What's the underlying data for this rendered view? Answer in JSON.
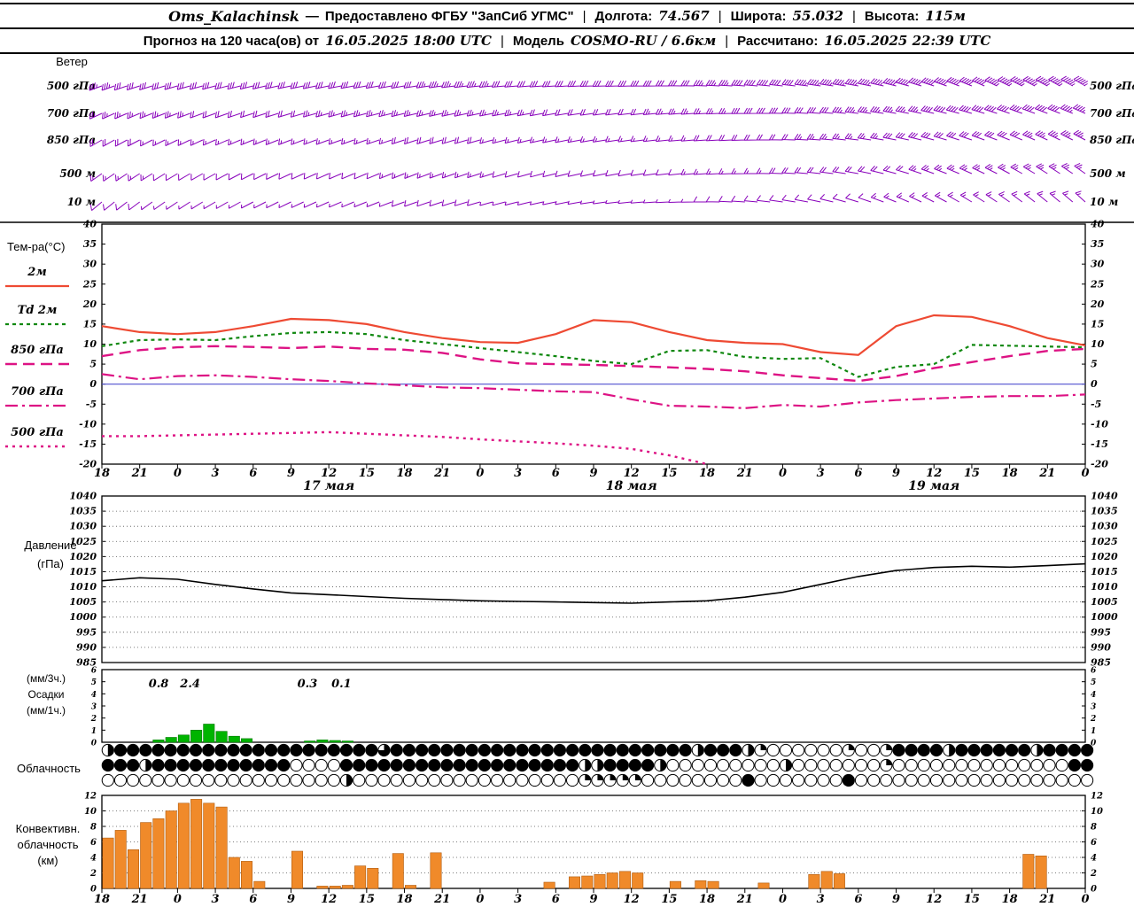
{
  "header": {
    "sep": "|",
    "line1": {
      "station": "Oms_Kalachinsk",
      "dash": "—",
      "provider": "Предоставлено ФГБУ \"ЗапСиб УГМС\"",
      "lon_label": "Долгота:",
      "lon_value": "74.567",
      "lat_label": "Широта:",
      "lat_value": "55.032",
      "alt_label": "Высота:",
      "alt_value": "115м"
    },
    "line2": {
      "forecast_label": "Прогноз на 120 часа(ов) от",
      "init_value": "16.05.2025 18:00 UTC",
      "model_label": "Модель",
      "model_value": "COSMO-RU / 6.6км",
      "calc_label": "Рассчитано:",
      "calc_value": "16.05.2025 22:39 UTC"
    }
  },
  "axis": {
    "span_hours": 78,
    "step_hours": 3,
    "hour_labels": [
      "18",
      "21",
      "0",
      "3",
      "6",
      "9",
      "12",
      "15",
      "18",
      "21",
      "0",
      "3",
      "6",
      "9",
      "12",
      "15",
      "18",
      "21",
      "0",
      "3",
      "6",
      "9",
      "12",
      "15",
      "18",
      "21",
      "0"
    ],
    "dates": [
      {
        "label": "17 мая",
        "hour": 18
      },
      {
        "label": "18 мая",
        "hour": 42
      },
      {
        "label": "19 мая",
        "hour": 66
      }
    ]
  },
  "chart_data": [
    {
      "id": "wind",
      "type": "wind-barbs",
      "title_lines": [
        "Ветер"
      ],
      "color": "#8800bb",
      "levels": [
        {
          "label": "500 гПа",
          "dirs": [
            250,
            252,
            254,
            255,
            256,
            258,
            258,
            260,
            260,
            262,
            264,
            265,
            266,
            268,
            268,
            270,
            272,
            274,
            276,
            278,
            280,
            284,
            288,
            292,
            296,
            298,
            300
          ],
          "speeds": [
            18,
            17,
            16,
            16,
            15,
            15,
            16,
            16,
            17,
            18,
            18,
            17,
            16,
            15,
            15,
            16,
            18,
            20,
            22,
            23,
            24,
            25,
            26,
            27,
            28,
            28,
            28
          ]
        },
        {
          "label": "700 гПа",
          "dirs": [
            245,
            247,
            249,
            250,
            252,
            253,
            254,
            255,
            256,
            257,
            258,
            259,
            260,
            262,
            263,
            265,
            267,
            269,
            271,
            274,
            277,
            280,
            283,
            286,
            289,
            291,
            293
          ],
          "speeds": [
            14,
            13,
            13,
            12,
            12,
            12,
            13,
            13,
            14,
            14,
            14,
            13,
            12,
            12,
            12,
            13,
            14,
            15,
            16,
            17,
            18,
            19,
            20,
            21,
            22,
            22,
            23
          ]
        },
        {
          "label": "850 гПа",
          "dirs": [
            240,
            242,
            244,
            246,
            248,
            249,
            250,
            251,
            252,
            253,
            254,
            256,
            258,
            260,
            262,
            264,
            266,
            268,
            271,
            274,
            277,
            281,
            285,
            289,
            292,
            295,
            298
          ],
          "speeds": [
            10,
            10,
            9,
            9,
            8,
            8,
            9,
            9,
            10,
            10,
            10,
            9,
            9,
            8,
            8,
            9,
            10,
            11,
            12,
            13,
            14,
            15,
            16,
            17,
            17,
            18,
            18
          ]
        },
        {
          "label": "500 м",
          "dirs": [
            235,
            237,
            239,
            241,
            243,
            245,
            246,
            247,
            248,
            250,
            252,
            254,
            256,
            258,
            260,
            263,
            266,
            269,
            272,
            276,
            280,
            285,
            290,
            294,
            298,
            302,
            305
          ],
          "speeds": [
            8,
            8,
            7,
            7,
            6,
            6,
            7,
            7,
            8,
            8,
            8,
            7,
            7,
            6,
            6,
            7,
            8,
            9,
            10,
            11,
            12,
            12,
            13,
            13,
            14,
            14,
            14
          ]
        },
        {
          "label": "10 м",
          "dirs": [
            230,
            233,
            236,
            239,
            242,
            244,
            246,
            248,
            250,
            252,
            254,
            256,
            258,
            261,
            264,
            267,
            270,
            274,
            278,
            282,
            287,
            292,
            297,
            301,
            305,
            309,
            312
          ],
          "speeds": [
            5,
            5,
            4,
            4,
            4,
            3,
            4,
            4,
            5,
            5,
            5,
            4,
            4,
            3,
            3,
            4,
            5,
            6,
            6,
            7,
            7,
            8,
            8,
            8,
            9,
            9,
            9
          ]
        }
      ]
    },
    {
      "id": "temperature",
      "type": "line",
      "title_lines": [
        "Тем-ра(°C)"
      ],
      "ylim": [
        -20,
        40
      ],
      "ytick": 5,
      "zero_line_color": "#5050d0",
      "series": [
        {
          "name": "2м",
          "color": "#ee4a33",
          "dash": "",
          "width": 2.2,
          "values": [
            14.5,
            13,
            12.5,
            13,
            14.5,
            16.3,
            16,
            15,
            13,
            11.5,
            10.5,
            10.3,
            12.5,
            16,
            15.5,
            13,
            11,
            10.3,
            10,
            8,
            7.3,
            14.5,
            17.2,
            16.8,
            14.5,
            11.5,
            9.7
          ]
        },
        {
          "name": "Td 2м",
          "color": "#108810",
          "dash": "4 4",
          "width": 2.2,
          "values": [
            9.5,
            11,
            11.2,
            11,
            12,
            12.8,
            13,
            12.5,
            11,
            10,
            9,
            8,
            7,
            5.8,
            5,
            8.3,
            8.5,
            6.8,
            6.3,
            6.5,
            1.8,
            4.3,
            5,
            9.8,
            9.6,
            9.4,
            9.2
          ]
        },
        {
          "name": "850 гПа",
          "color": "#dd1384",
          "dash": "13 7",
          "width": 2.4,
          "values": [
            7,
            8.5,
            9.2,
            9.5,
            9.3,
            9,
            9.4,
            8.8,
            8.6,
            7.8,
            6.2,
            5.2,
            5,
            4.8,
            4.5,
            4.2,
            3.8,
            3.2,
            2.2,
            1.5,
            0.8,
            2,
            4,
            5.5,
            7,
            8.3,
            8.8
          ]
        },
        {
          "name": "700 гПа",
          "color": "#dd1384",
          "dash": "14 5 3 5",
          "width": 2.2,
          "values": [
            2.5,
            1.2,
            2,
            2.2,
            1.8,
            1.2,
            0.8,
            0.2,
            -0.3,
            -0.8,
            -1,
            -1.4,
            -1.8,
            -2,
            -3.8,
            -5.4,
            -5.6,
            -6,
            -5.2,
            -5.6,
            -4.6,
            -4,
            -3.6,
            -3.2,
            -3,
            -3,
            -2.6
          ]
        },
        {
          "name": "500 гПа",
          "color": "#dd1384",
          "dash": "3 5",
          "width": 2.4,
          "values": [
            -13,
            -13,
            -12.8,
            -12.6,
            -12.4,
            -12.2,
            -12,
            -12.4,
            -12.8,
            -13.2,
            -13.8,
            -14.3,
            -14.8,
            -15.4,
            -16.2,
            -17.8,
            -20,
            null,
            null,
            null,
            null,
            null,
            null,
            null,
            null,
            null,
            null
          ]
        }
      ]
    },
    {
      "id": "pressure",
      "type": "line",
      "title_lines": [
        "Давление",
        "(гПа)"
      ],
      "ylim": [
        985,
        1040
      ],
      "ytick": 5,
      "series": [
        {
          "name": "Давление",
          "color": "#000000",
          "dash": "",
          "width": 1.6,
          "values": [
            1012,
            1013,
            1012.5,
            1010.8,
            1009.3,
            1008,
            1007.4,
            1006.8,
            1006.2,
            1005.8,
            1005.4,
            1005.2,
            1005,
            1004.8,
            1004.6,
            1005,
            1005.4,
            1006.6,
            1008.2,
            1010.8,
            1013.4,
            1015.4,
            1016.4,
            1016.8,
            1016.5,
            1017,
            1017.6
          ]
        }
      ]
    },
    {
      "id": "precipitation",
      "type": "bar",
      "title_lines": [
        "(мм/3ч.)",
        "Осадки",
        "(мм/1ч.)"
      ],
      "ylim": [
        0,
        6
      ],
      "ytick": 1,
      "color": "#00b400",
      "edge": "#007700",
      "values_hourly": [
        0,
        0,
        0,
        0,
        0.2,
        0.4,
        0.6,
        1.0,
        1.5,
        0.9,
        0.5,
        0.3,
        0,
        0,
        0,
        0,
        0.1,
        0.2,
        0.15,
        0.1,
        0,
        0,
        0,
        0,
        0,
        0,
        0,
        0,
        0,
        0,
        0,
        0,
        0,
        0,
        0,
        0,
        0,
        0,
        0,
        0,
        0,
        0,
        0,
        0,
        0,
        0,
        0,
        0,
        0,
        0,
        0,
        0,
        0,
        0,
        0,
        0,
        0,
        0,
        0,
        0,
        0,
        0,
        0,
        0,
        0,
        0,
        0,
        0,
        0,
        0,
        0,
        0,
        0,
        0,
        0,
        0,
        0,
        0,
        0
      ],
      "annotations": [
        {
          "hour": 4.5,
          "text": "0.8"
        },
        {
          "hour": 7,
          "text": "2.4"
        },
        {
          "hour": 16.3,
          "text": "0.3"
        },
        {
          "hour": 19,
          "text": "0.1"
        }
      ]
    },
    {
      "id": "cloudiness",
      "type": "symbol-matrix",
      "title_lines": [
        "Облачность"
      ],
      "rows": [
        "2444444444444444444444344444444444444444444444424442100000010014444244444424444",
        "4442444444444440000444444444444444444422444420000000002000000010000000000000044",
        "0000000000000000000200000000000000000011111000000004000000040000000000000000000"
      ]
    },
    {
      "id": "convective",
      "type": "bar",
      "title_lines": [
        "Конвективн.",
        "облачность",
        "(км)"
      ],
      "ylim": [
        0,
        12
      ],
      "ytick": 2,
      "color": "#f08a2a",
      "edge": "#b05c10",
      "values_hourly": [
        6.5,
        7.5,
        5,
        8.5,
        9,
        10,
        11,
        11.5,
        11,
        10.5,
        4,
        3.5,
        0.9,
        0,
        0,
        4.8,
        0,
        0.3,
        0.3,
        0.4,
        2.9,
        2.6,
        0,
        4.5,
        0.4,
        0,
        4.6,
        0,
        0,
        0,
        0,
        0,
        0,
        0,
        0,
        0.8,
        0,
        1.5,
        1.6,
        1.8,
        2,
        2.2,
        2,
        0,
        0,
        0.9,
        0,
        1,
        0.9,
        0,
        0,
        0,
        0.7,
        0,
        0,
        0,
        1.8,
        2.2,
        1.9,
        0,
        0,
        0,
        0,
        0,
        0,
        0,
        0,
        0,
        0,
        0,
        0,
        0,
        0,
        4.4,
        4.2,
        0,
        0,
        0,
        0
      ]
    }
  ]
}
